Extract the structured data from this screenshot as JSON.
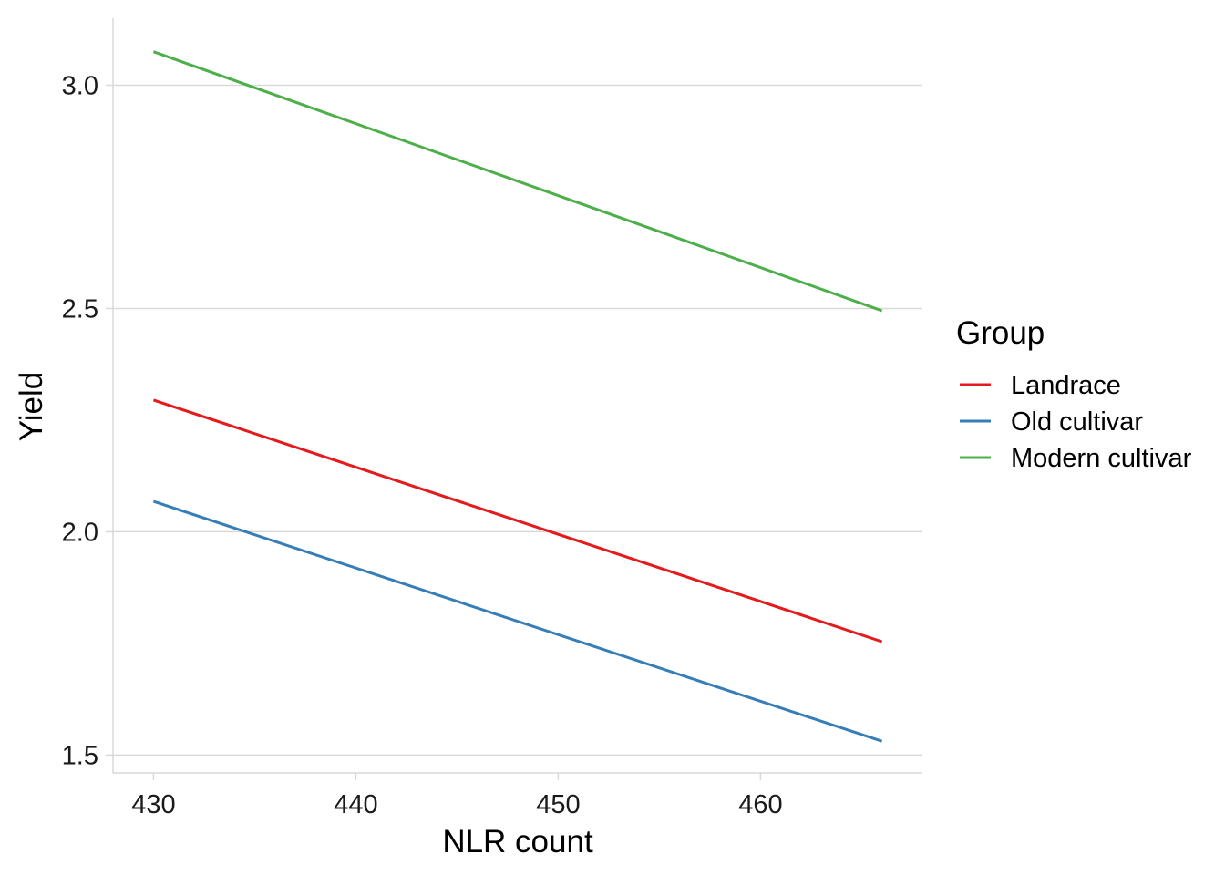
{
  "chart_data": {
    "type": "line",
    "xlabel": "NLR count",
    "ylabel": "Yield",
    "xlim": [
      428,
      468
    ],
    "ylim": [
      1.46,
      3.15
    ],
    "x_ticks": [
      430,
      440,
      450,
      460
    ],
    "x_tick_labels": [
      "430",
      "440",
      "450",
      "460"
    ],
    "y_ticks": [
      1.5,
      2.0,
      2.5,
      3.0
    ],
    "y_tick_labels": [
      "1.5",
      "2.0",
      "2.5",
      "3.0"
    ],
    "grid": "horizontal-major",
    "legend": {
      "title": "Group",
      "placement": "right"
    },
    "series": [
      {
        "name": "Landrace",
        "color": "#e41a1c",
        "x": [
          430,
          466
        ],
        "y": [
          2.295,
          1.754
        ]
      },
      {
        "name": "Old cultivar",
        "color": "#377eb8",
        "x": [
          430,
          466
        ],
        "y": [
          2.068,
          1.531
        ]
      },
      {
        "name": "Modern cultivar",
        "color": "#4daf4a",
        "x": [
          430,
          466
        ],
        "y": [
          3.075,
          2.495
        ]
      }
    ]
  }
}
